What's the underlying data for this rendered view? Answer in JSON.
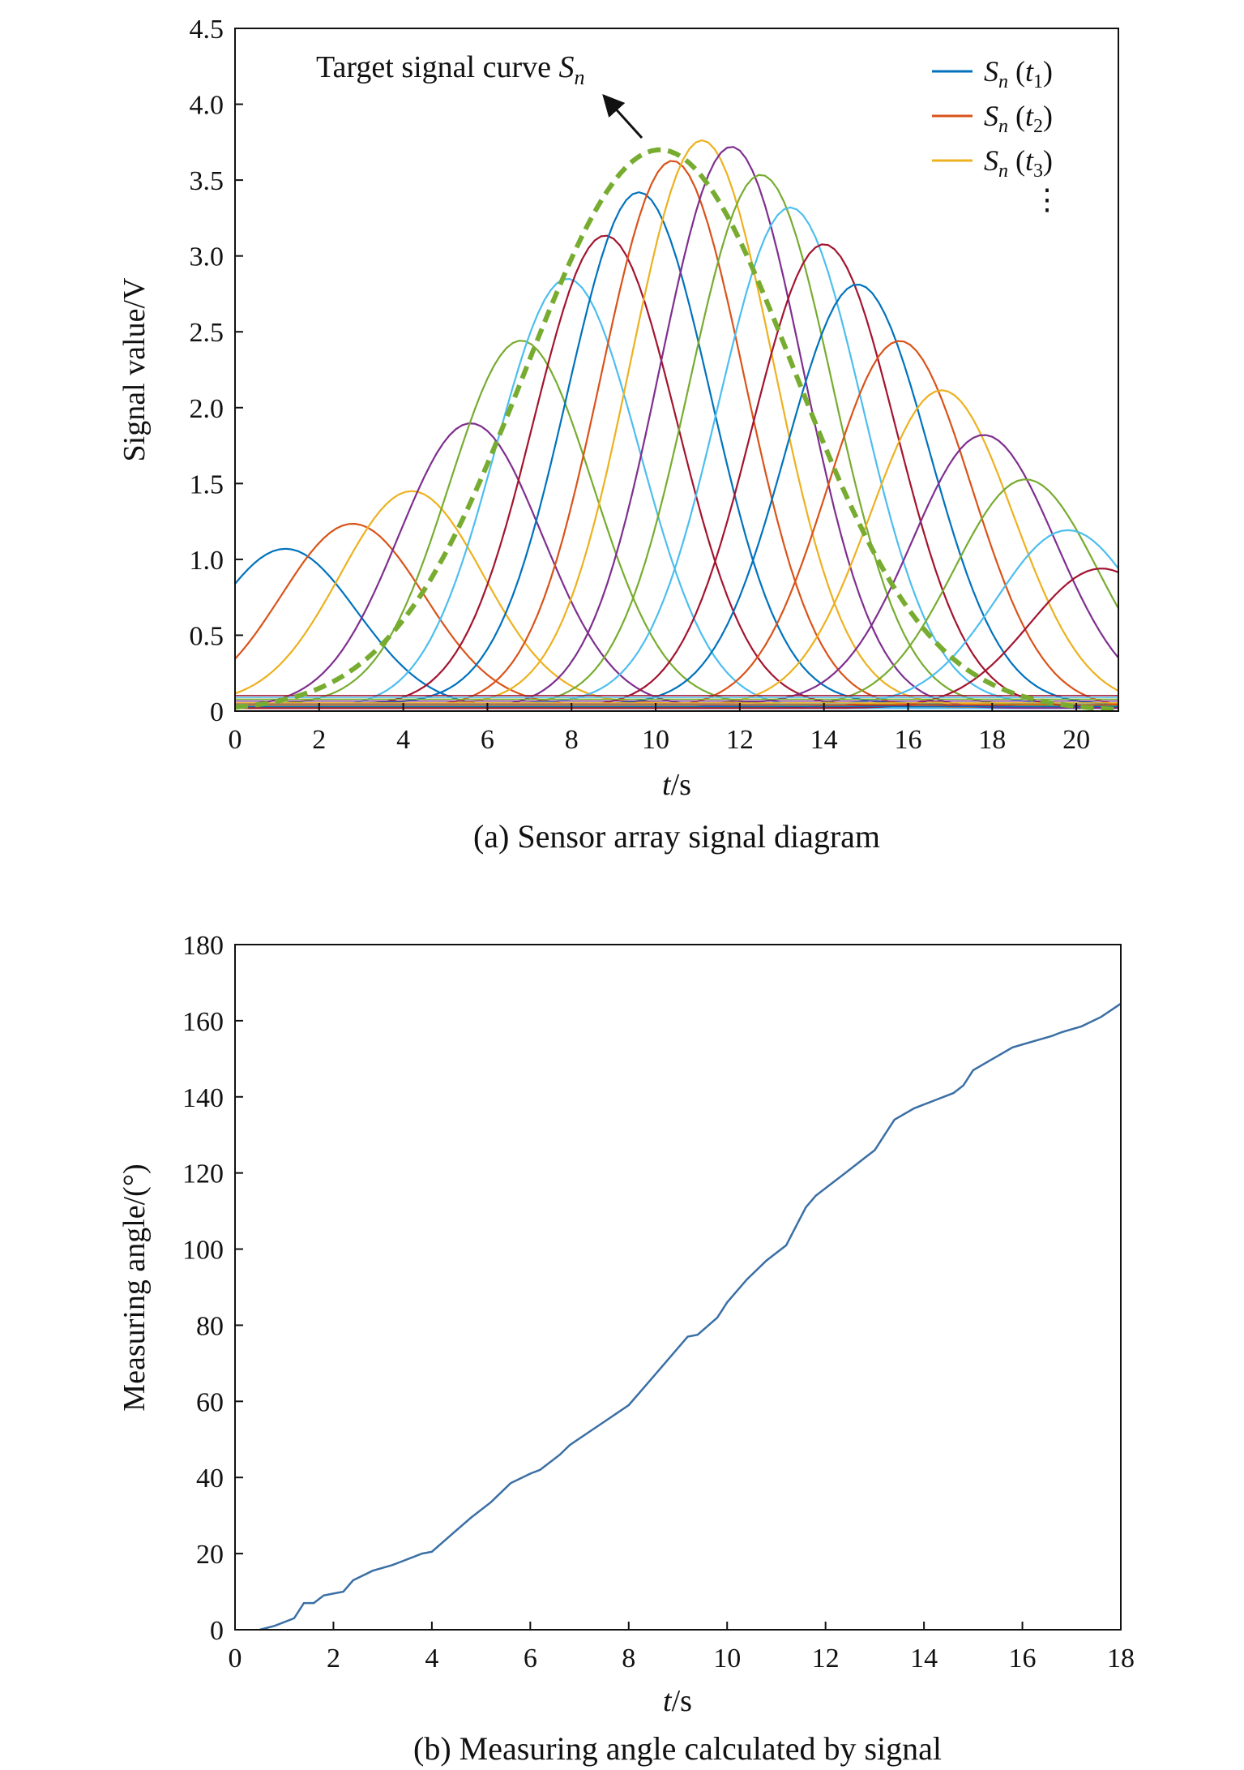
{
  "chart_data": [
    {
      "type": "line",
      "caption": "(a) Sensor array signal diagram",
      "xlabel": {
        "italic": "t",
        "rest": "/s"
      },
      "ylabel": "Signal value/V",
      "xlim": [
        0,
        21
      ],
      "ylim": [
        0,
        4.5
      ],
      "xticks": [
        "0",
        "2",
        "4",
        "6",
        "8",
        "10",
        "12",
        "14",
        "16",
        "18",
        "20"
      ],
      "yticks": [
        "0",
        "0.5",
        "1.0",
        "1.5",
        "2.0",
        "2.5",
        "3.0",
        "3.5",
        "4.0",
        "4.5"
      ],
      "legend_position": "top-right",
      "legend": [
        {
          "s": "S",
          "sub_n": "n",
          "open": " (",
          "t": "t",
          "sub_i": "1",
          "close": ")",
          "color": "#0072BD"
        },
        {
          "s": "S",
          "sub_n": "n",
          "open": " (",
          "t": "t",
          "sub_i": "2",
          "close": ")",
          "color": "#D95319"
        },
        {
          "s": "S",
          "sub_n": "n",
          "open": " (",
          "t": "t",
          "sub_i": "3",
          "close": ")",
          "color": "#EDB120"
        }
      ],
      "legend_more": "⋮",
      "annotation": {
        "text": "Target signal curve ",
        "s": "S",
        "sub": "n"
      },
      "target_curve": {
        "center": 10.1,
        "amplitude": 3.7,
        "width": 3.2,
        "color": "#77AC30",
        "style": "dashed"
      },
      "sensor_centers": [
        1.2,
        2.8,
        4.2,
        5.6,
        6.8,
        7.9,
        8.8,
        9.6,
        10.4,
        11.1,
        11.8,
        12.5,
        13.2,
        14.0,
        14.8,
        15.8,
        16.8,
        17.8,
        18.8,
        19.8,
        20.6
      ],
      "sensor_amplitudes": [
        1.05,
        1.2,
        1.4,
        1.87,
        2.4,
        2.83,
        3.1,
        3.37,
        3.6,
        3.72,
        3.7,
        3.5,
        3.27,
        3.05,
        2.77,
        2.42,
        2.08,
        1.77,
        1.5,
        1.15,
        0.92
      ],
      "sensor_width": 1.7,
      "sensor_colors": [
        "#0072BD",
        "#D95319",
        "#EDB120",
        "#7E2F8E",
        "#77AC30",
        "#4DBEEE",
        "#A2142F"
      ]
    },
    {
      "type": "line",
      "caption": "(b) Measuring angle calculated by signal",
      "xlabel": {
        "italic": "t",
        "rest": "/s"
      },
      "ylabel": "Measuring angle/(°)",
      "xlim": [
        0,
        18
      ],
      "ylim": [
        0,
        180
      ],
      "xticks": [
        "0",
        "2",
        "4",
        "6",
        "8",
        "10",
        "12",
        "14",
        "16",
        "18"
      ],
      "yticks": [
        "0",
        "20",
        "40",
        "60",
        "80",
        "100",
        "120",
        "140",
        "160",
        "180"
      ],
      "series": [
        {
          "color": "#3A6FA5",
          "x": [
            0.5,
            0.8,
            1.2,
            1.4,
            1.6,
            1.8,
            2.0,
            2.2,
            2.4,
            2.8,
            3.2,
            3.4,
            3.8,
            4.0,
            4.4,
            4.8,
            5.2,
            5.6,
            6.0,
            6.2,
            6.6,
            6.8,
            7.2,
            7.6,
            8.0,
            8.4,
            8.8,
            9.2,
            9.4,
            9.8,
            10.0,
            10.4,
            10.8,
            11.2,
            11.4,
            11.6,
            11.8,
            12.0,
            12.4,
            12.8,
            13.0,
            13.2,
            13.4,
            13.8,
            14.2,
            14.6,
            14.8,
            15.0,
            15.4,
            15.8,
            16.2,
            16.6,
            16.8,
            17.2,
            17.6,
            18.0
          ],
          "y": [
            0,
            1,
            3,
            7,
            7,
            9,
            9.5,
            10,
            13,
            15.5,
            17,
            18,
            20,
            20.5,
            25,
            29.5,
            33.5,
            38.5,
            41,
            42,
            46,
            48.5,
            52,
            55.5,
            59,
            65,
            71,
            77,
            77.5,
            82,
            86,
            92,
            97,
            101,
            106,
            111,
            114,
            116,
            120,
            124,
            126,
            130,
            134,
            137,
            139,
            141,
            143,
            147,
            150,
            153,
            154.5,
            156,
            157,
            158.5,
            161,
            164.5
          ]
        }
      ]
    }
  ]
}
